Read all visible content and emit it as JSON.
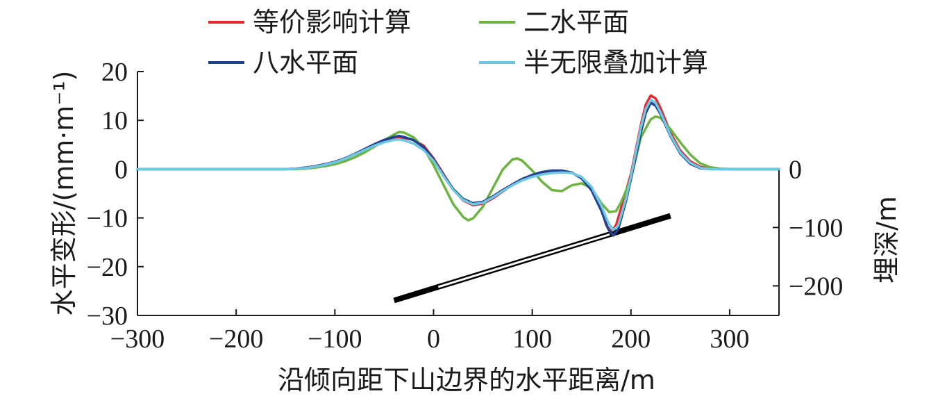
{
  "chart_data": {
    "type": "line",
    "xlabel": "沿倾向距下山边界的水平距离/m",
    "ylabel": "水平变形/(mm·m⁻¹)",
    "y2label": "埋深/m",
    "xlim": [
      -300,
      350
    ],
    "ylim": [
      -30,
      20
    ],
    "x_ticks": [
      -300,
      -200,
      -100,
      0,
      100,
      200,
      300
    ],
    "x_tick_labels": [
      "−300",
      "−200",
      "−100",
      "0",
      "100",
      "200",
      "300"
    ],
    "y_ticks": [
      20,
      10,
      0,
      -10,
      -20,
      -30
    ],
    "y_tick_labels": [
      "20",
      "10",
      "0",
      "−10",
      "−20",
      "−30"
    ],
    "y2_ticks": [
      0,
      -100,
      -200
    ],
    "y2_tick_labels": [
      "0",
      "−100",
      "−200"
    ],
    "legend_position": "top",
    "series": [
      {
        "name": "等价影响计算",
        "color": "#e8262d",
        "points": [
          [
            -300,
            0
          ],
          [
            -150,
            0
          ],
          [
            -140,
            0.1
          ],
          [
            -130,
            0.3
          ],
          [
            -120,
            0.6
          ],
          [
            -110,
            1.0
          ],
          [
            -100,
            1.5
          ],
          [
            -90,
            2.2
          ],
          [
            -80,
            3.0
          ],
          [
            -70,
            3.9
          ],
          [
            -60,
            4.8
          ],
          [
            -50,
            5.6
          ],
          [
            -40,
            6.2
          ],
          [
            -30,
            6.4
          ],
          [
            -20,
            6.0
          ],
          [
            -10,
            4.8
          ],
          [
            0,
            2.2
          ],
          [
            10,
            -1.0
          ],
          [
            20,
            -4.2
          ],
          [
            30,
            -6.4
          ],
          [
            40,
            -7.4
          ],
          [
            50,
            -7.1
          ],
          [
            60,
            -6.0
          ],
          [
            70,
            -4.6
          ],
          [
            80,
            -3.2
          ],
          [
            90,
            -2.1
          ],
          [
            100,
            -1.3
          ],
          [
            110,
            -0.8
          ],
          [
            120,
            -0.5
          ],
          [
            130,
            -0.4
          ],
          [
            140,
            -0.7
          ],
          [
            150,
            -1.8
          ],
          [
            160,
            -4.0
          ],
          [
            170,
            -8.0
          ],
          [
            175,
            -11.5
          ],
          [
            180,
            -12.8
          ],
          [
            185,
            -11.5
          ],
          [
            190,
            -8.0
          ],
          [
            200,
            -1.0
          ],
          [
            210,
            9.0
          ],
          [
            215,
            13.2
          ],
          [
            220,
            15.1
          ],
          [
            225,
            14.5
          ],
          [
            230,
            12.5
          ],
          [
            240,
            7.5
          ],
          [
            250,
            3.8
          ],
          [
            260,
            1.6
          ],
          [
            270,
            0.5
          ],
          [
            280,
            0.1
          ],
          [
            290,
            0
          ],
          [
            350,
            0
          ]
        ]
      },
      {
        "name": "二水平面",
        "color": "#6db33f",
        "points": [
          [
            -300,
            0
          ],
          [
            -140,
            0
          ],
          [
            -130,
            0.1
          ],
          [
            -120,
            0.3
          ],
          [
            -110,
            0.6
          ],
          [
            -100,
            1.0
          ],
          [
            -90,
            1.6
          ],
          [
            -80,
            2.4
          ],
          [
            -70,
            3.4
          ],
          [
            -60,
            4.6
          ],
          [
            -50,
            5.9
          ],
          [
            -40,
            7.1
          ],
          [
            -35,
            7.6
          ],
          [
            -30,
            7.5
          ],
          [
            -20,
            6.5
          ],
          [
            -10,
            4.3
          ],
          [
            0,
            0.8
          ],
          [
            10,
            -3.2
          ],
          [
            20,
            -7.2
          ],
          [
            30,
            -9.8
          ],
          [
            35,
            -10.5
          ],
          [
            40,
            -10.1
          ],
          [
            50,
            -7.7
          ],
          [
            60,
            -3.9
          ],
          [
            70,
            -0.1
          ],
          [
            80,
            2.0
          ],
          [
            85,
            2.2
          ],
          [
            90,
            1.7
          ],
          [
            100,
            -0.3
          ],
          [
            110,
            -2.6
          ],
          [
            120,
            -4.3
          ],
          [
            130,
            -4.5
          ],
          [
            140,
            -3.3
          ],
          [
            150,
            -2.9
          ],
          [
            160,
            -3.9
          ],
          [
            170,
            -7.0
          ],
          [
            178,
            -8.8
          ],
          [
            185,
            -8.6
          ],
          [
            190,
            -6.8
          ],
          [
            200,
            -2.0
          ],
          [
            210,
            6.5
          ],
          [
            220,
            10.2
          ],
          [
            225,
            10.8
          ],
          [
            230,
            10.5
          ],
          [
            240,
            8.2
          ],
          [
            250,
            5.5
          ],
          [
            260,
            3.0
          ],
          [
            270,
            1.2
          ],
          [
            280,
            0.4
          ],
          [
            290,
            0.1
          ],
          [
            300,
            0
          ],
          [
            350,
            0
          ]
        ]
      },
      {
        "name": "八水平面",
        "color": "#1f3f8f",
        "points": [
          [
            -300,
            0
          ],
          [
            -150,
            0
          ],
          [
            -140,
            0.1
          ],
          [
            -130,
            0.3
          ],
          [
            -120,
            0.6
          ],
          [
            -110,
            1.0
          ],
          [
            -100,
            1.5
          ],
          [
            -90,
            2.2
          ],
          [
            -80,
            3.1
          ],
          [
            -70,
            4.1
          ],
          [
            -60,
            5.1
          ],
          [
            -50,
            6.0
          ],
          [
            -40,
            6.6
          ],
          [
            -35,
            6.8
          ],
          [
            -30,
            6.6
          ],
          [
            -20,
            5.9
          ],
          [
            -10,
            4.5
          ],
          [
            0,
            2.0
          ],
          [
            10,
            -1.2
          ],
          [
            20,
            -4.1
          ],
          [
            30,
            -6.1
          ],
          [
            40,
            -7.0
          ],
          [
            50,
            -6.7
          ],
          [
            60,
            -5.6
          ],
          [
            70,
            -4.3
          ],
          [
            80,
            -3.1
          ],
          [
            90,
            -2.0
          ],
          [
            100,
            -1.2
          ],
          [
            110,
            -0.6
          ],
          [
            120,
            -0.3
          ],
          [
            130,
            -0.3
          ],
          [
            140,
            -0.7
          ],
          [
            150,
            -1.9
          ],
          [
            160,
            -4.3
          ],
          [
            170,
            -8.5
          ],
          [
            177,
            -12.3
          ],
          [
            182,
            -13.6
          ],
          [
            187,
            -12.4
          ],
          [
            195,
            -6.5
          ],
          [
            200,
            -2.0
          ],
          [
            210,
            7.5
          ],
          [
            215,
            11.5
          ],
          [
            220,
            13.6
          ],
          [
            225,
            13.0
          ],
          [
            230,
            11.3
          ],
          [
            240,
            6.8
          ],
          [
            250,
            3.2
          ],
          [
            260,
            1.1
          ],
          [
            270,
            0.2
          ],
          [
            280,
            0
          ],
          [
            350,
            0
          ]
        ]
      },
      {
        "name": "半无限叠加计算",
        "color": "#6ec8e0",
        "points": [
          [
            -300,
            0
          ],
          [
            -150,
            0
          ],
          [
            -140,
            0.1
          ],
          [
            -130,
            0.2
          ],
          [
            -120,
            0.5
          ],
          [
            -110,
            0.9
          ],
          [
            -100,
            1.4
          ],
          [
            -90,
            2.1
          ],
          [
            -80,
            3.0
          ],
          [
            -70,
            3.9
          ],
          [
            -60,
            4.8
          ],
          [
            -50,
            5.5
          ],
          [
            -40,
            6.0
          ],
          [
            -35,
            6.1
          ],
          [
            -30,
            5.9
          ],
          [
            -20,
            5.2
          ],
          [
            -10,
            3.9
          ],
          [
            0,
            1.7
          ],
          [
            10,
            -1.4
          ],
          [
            20,
            -4.3
          ],
          [
            30,
            -6.3
          ],
          [
            40,
            -7.2
          ],
          [
            50,
            -6.9
          ],
          [
            60,
            -5.8
          ],
          [
            70,
            -4.5
          ],
          [
            80,
            -3.3
          ],
          [
            90,
            -2.3
          ],
          [
            100,
            -1.6
          ],
          [
            110,
            -1.1
          ],
          [
            120,
            -0.8
          ],
          [
            130,
            -0.7
          ],
          [
            140,
            -0.8
          ],
          [
            150,
            -1.6
          ],
          [
            160,
            -3.6
          ],
          [
            170,
            -7.5
          ],
          [
            177,
            -11.0
          ],
          [
            182,
            -12.5
          ],
          [
            187,
            -11.6
          ],
          [
            195,
            -6.0
          ],
          [
            200,
            -1.5
          ],
          [
            210,
            8.5
          ],
          [
            215,
            12.3
          ],
          [
            220,
            14.2
          ],
          [
            225,
            13.6
          ],
          [
            230,
            11.6
          ],
          [
            240,
            7.0
          ],
          [
            250,
            3.4
          ],
          [
            260,
            1.3
          ],
          [
            270,
            0.3
          ],
          [
            280,
            0
          ],
          [
            350,
            0
          ]
        ]
      }
    ],
    "annotations": {
      "seam_depth": {
        "x": [
          -40,
          240
        ],
        "y2": [
          -225,
          -80
        ]
      }
    }
  }
}
